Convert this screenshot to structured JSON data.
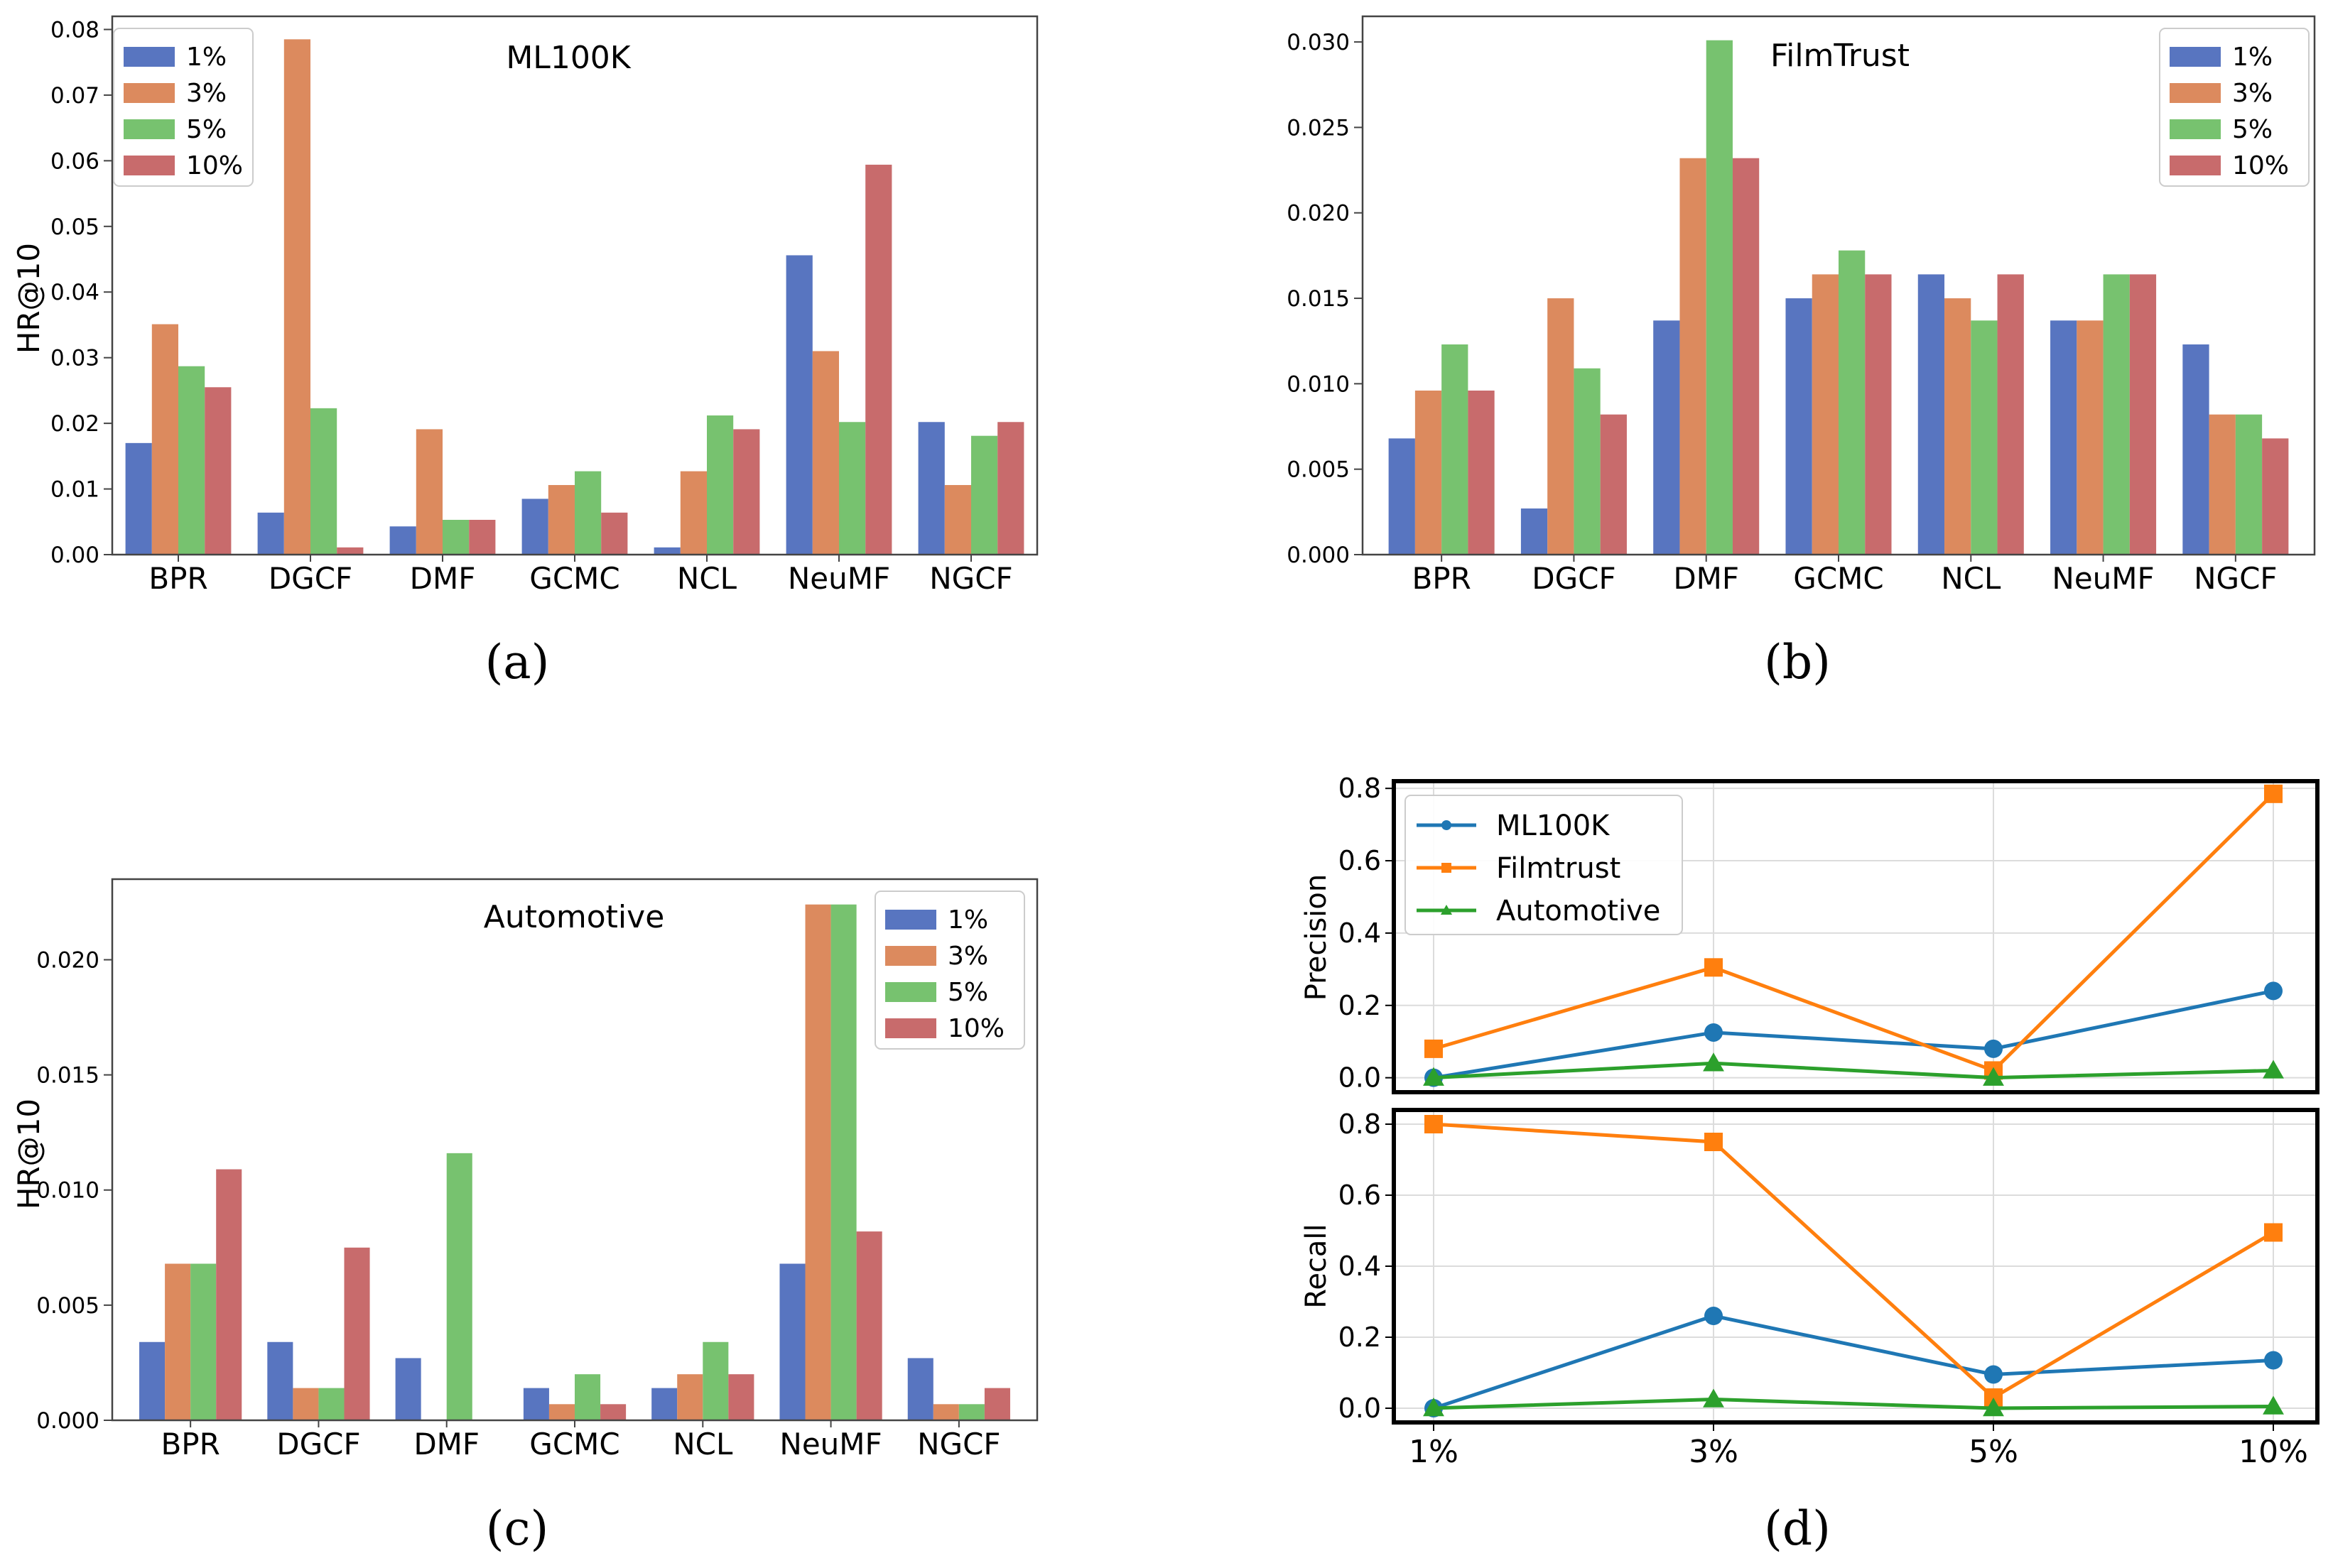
{
  "colors": {
    "1%": "#5875c0",
    "3%": "#dc8a5e",
    "5%": "#77c26f",
    "10%": "#c86b6c",
    "ml100k": "#1f77b4",
    "filmtrust": "#ff7f0e",
    "automotive": "#2ca02c",
    "grid": "#dcdcdc"
  },
  "chart_data": [
    {
      "id": "a",
      "type": "bar",
      "title": "ML100K",
      "caption": "(a)",
      "ylabel": "HR@10",
      "xlabel": "",
      "ylim": [
        0,
        0.082
      ],
      "yticks": [
        0,
        0.01,
        0.02,
        0.03,
        0.04,
        0.05,
        0.06,
        0.07,
        0.08
      ],
      "ytick_labels": [
        "0.00",
        "0.01",
        "0.02",
        "0.03",
        "0.04",
        "0.05",
        "0.06",
        "0.07",
        "0.08"
      ],
      "legend_position": "top-left",
      "categories": [
        "BPR",
        "DGCF",
        "DMF",
        "GCMC",
        "NCL",
        "NeuMF",
        "NGCF"
      ],
      "series": [
        {
          "name": "1%",
          "values": [
            0.017,
            0.0064,
            0.0043,
            0.0085,
            0.0011,
            0.0456,
            0.0202
          ]
        },
        {
          "name": "3%",
          "values": [
            0.0351,
            0.0785,
            0.0191,
            0.0106,
            0.0127,
            0.031,
            0.0106
          ]
        },
        {
          "name": "5%",
          "values": [
            0.0287,
            0.0223,
            0.0053,
            0.0127,
            0.0212,
            0.0202,
            0.0181
          ]
        },
        {
          "name": "10%",
          "values": [
            0.0255,
            0.0011,
            0.0053,
            0.0064,
            0.0191,
            0.0594,
            0.0202
          ]
        }
      ]
    },
    {
      "id": "b",
      "type": "bar",
      "title": "FilmTrust",
      "caption": "(b)",
      "ylabel": "",
      "xlabel": "",
      "ylim": [
        0,
        0.0315
      ],
      "yticks": [
        0,
        0.005,
        0.01,
        0.015,
        0.02,
        0.025,
        0.03
      ],
      "ytick_labels": [
        "0.000",
        "0.005",
        "0.010",
        "0.015",
        "0.020",
        "0.025",
        "0.030"
      ],
      "legend_position": "top-right",
      "categories": [
        "BPR",
        "DGCF",
        "DMF",
        "GCMC",
        "NCL",
        "NeuMF",
        "NGCF"
      ],
      "series": [
        {
          "name": "1%",
          "values": [
            0.0068,
            0.0027,
            0.0137,
            0.015,
            0.0164,
            0.0137,
            0.0123
          ]
        },
        {
          "name": "3%",
          "values": [
            0.0096,
            0.015,
            0.0232,
            0.0164,
            0.015,
            0.0137,
            0.0082
          ]
        },
        {
          "name": "5%",
          "values": [
            0.0123,
            0.0109,
            0.0301,
            0.0178,
            0.0137,
            0.0164,
            0.0082
          ]
        },
        {
          "name": "10%",
          "values": [
            0.0096,
            0.0082,
            0.0232,
            0.0164,
            0.0164,
            0.0164,
            0.0068
          ]
        }
      ]
    },
    {
      "id": "c",
      "type": "bar",
      "title": "Automotive",
      "caption": "(c)",
      "ylabel": "HR@10",
      "xlabel": "",
      "ylim": [
        0,
        0.0235
      ],
      "yticks": [
        0,
        0.005,
        0.01,
        0.015,
        0.02
      ],
      "ytick_labels": [
        "0.000",
        "0.005",
        "0.010",
        "0.015",
        "0.020"
      ],
      "legend_position": "top-right",
      "categories": [
        "BPR",
        "DGCF",
        "DMF",
        "GCMC",
        "NCL",
        "NeuMF",
        "NGCF"
      ],
      "series": [
        {
          "name": "1%",
          "values": [
            0.0034,
            0.0034,
            0.0027,
            0.0014,
            0.0014,
            0.0068,
            0.0027
          ]
        },
        {
          "name": "3%",
          "values": [
            0.0068,
            0.0014,
            0.0,
            0.0007,
            0.002,
            0.0224,
            0.0007
          ]
        },
        {
          "name": "5%",
          "values": [
            0.0068,
            0.0014,
            0.0116,
            0.002,
            0.0034,
            0.0224,
            0.0007
          ]
        },
        {
          "name": "10%",
          "values": [
            0.0109,
            0.0075,
            0.0,
            0.0007,
            0.002,
            0.0082,
            0.0014
          ]
        }
      ]
    },
    {
      "id": "d",
      "type": "line",
      "caption": "(d)",
      "x": [
        "1%",
        "3%",
        "5%",
        "10%"
      ],
      "legend_position": "top-left",
      "panels": [
        {
          "ylabel": "Precision",
          "ylim": [
            -0.04,
            0.82
          ],
          "yticks": [
            0,
            0.2,
            0.4,
            0.6,
            0.8
          ],
          "ytick_labels": [
            "0.0",
            "0.2",
            "0.4",
            "0.6",
            "0.8"
          ],
          "series": [
            {
              "name": "ML100K",
              "marker": "circle",
              "values": [
                0.0,
                0.125,
                0.08,
                0.24
              ]
            },
            {
              "name": "Filmtrust",
              "marker": "square",
              "values": [
                0.08,
                0.305,
                0.02,
                0.785
              ]
            },
            {
              "name": "Automotive",
              "marker": "triangle",
              "values": [
                0.0,
                0.04,
                0.0,
                0.02
              ]
            }
          ]
        },
        {
          "ylabel": "Recall",
          "ylim": [
            -0.04,
            0.84
          ],
          "yticks": [
            0,
            0.2,
            0.4,
            0.6,
            0.8
          ],
          "ytick_labels": [
            "0.0",
            "0.2",
            "0.4",
            "0.6",
            "0.8"
          ],
          "series": [
            {
              "name": "ML100K",
              "marker": "circle",
              "values": [
                0.0,
                0.26,
                0.095,
                0.135
              ]
            },
            {
              "name": "Filmtrust",
              "marker": "square",
              "values": [
                0.8,
                0.75,
                0.03,
                0.495
              ]
            },
            {
              "name": "Automotive",
              "marker": "triangle",
              "values": [
                0.0,
                0.025,
                0.0,
                0.005
              ]
            }
          ]
        }
      ]
    }
  ]
}
